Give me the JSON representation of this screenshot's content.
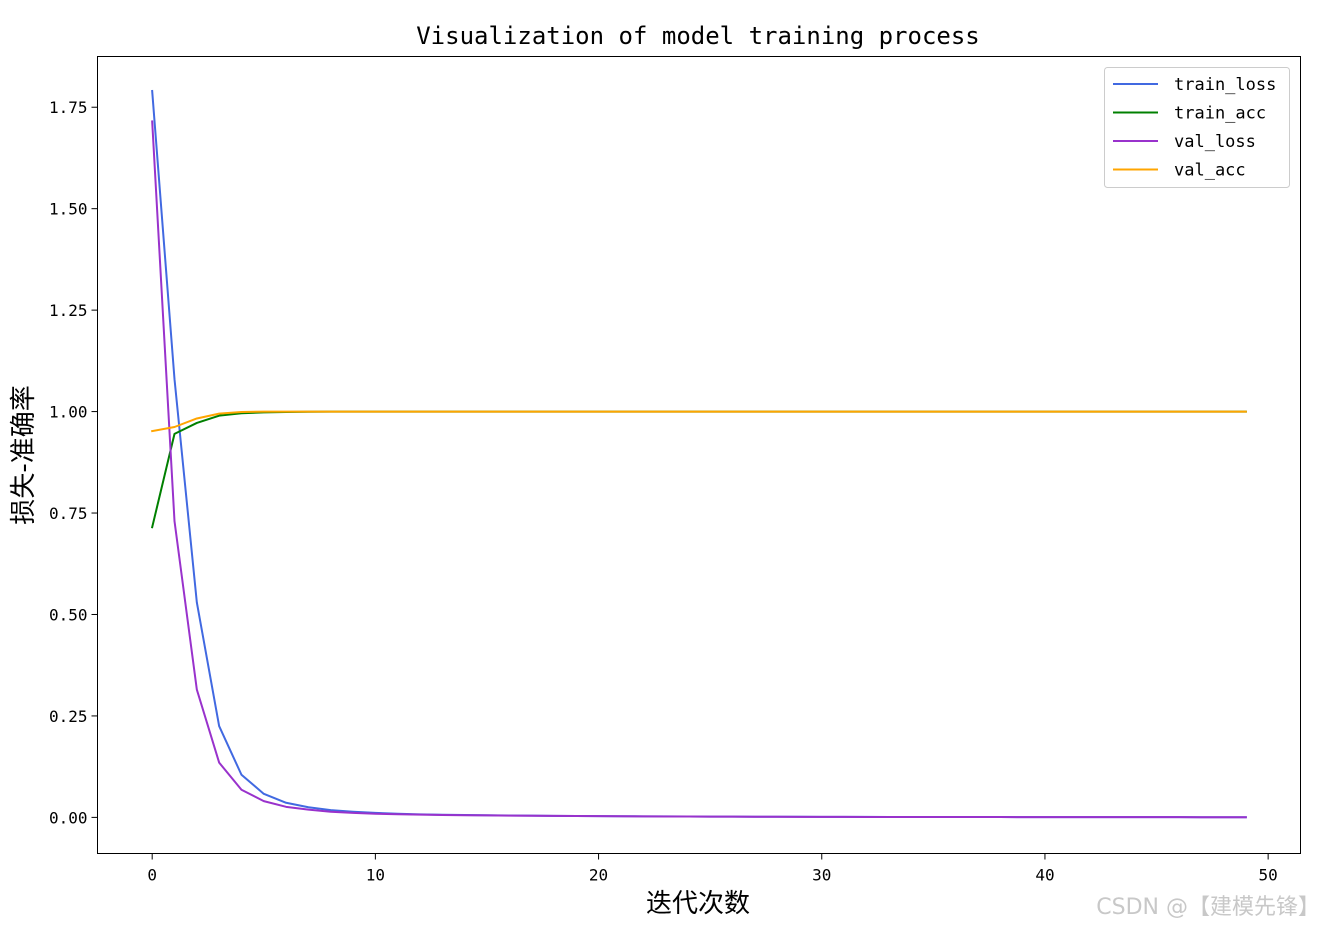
{
  "chart_data": {
    "type": "line",
    "title": "Visualization of model training process",
    "xlabel": "迭代次数",
    "ylabel": "损失-准确率",
    "xlim": [
      -2.45,
      51.45
    ],
    "ylim": [
      -0.089,
      1.875
    ],
    "xticks": [
      0,
      10,
      20,
      30,
      40,
      50
    ],
    "yticks": [
      0.0,
      0.25,
      0.5,
      0.75,
      1.0,
      1.25,
      1.5,
      1.75
    ],
    "xtick_labels": [
      "0",
      "10",
      "20",
      "30",
      "40",
      "50"
    ],
    "ytick_labels": [
      "0.00",
      "0.25",
      "0.50",
      "0.75",
      "1.00",
      "1.25",
      "1.50",
      "1.75"
    ],
    "legend_position": "top-right",
    "grid": false,
    "series": [
      {
        "name": "train_loss",
        "color": "#4169e1",
        "x": [
          0,
          1,
          2,
          3,
          4,
          5,
          6,
          7,
          8,
          9,
          10,
          11,
          12,
          13,
          14,
          15,
          16,
          17,
          18,
          19,
          20,
          21,
          22,
          23,
          24,
          25,
          26,
          27,
          28,
          29,
          30,
          31,
          32,
          33,
          34,
          35,
          36,
          37,
          38,
          39,
          40,
          41,
          42,
          43,
          44,
          45,
          46,
          47,
          48,
          49
        ],
        "y": [
          1.79,
          1.08,
          0.53,
          0.225,
          0.105,
          0.058,
          0.036,
          0.025,
          0.018,
          0.014,
          0.011,
          0.009,
          0.0075,
          0.0065,
          0.0058,
          0.0052,
          0.0047,
          0.0042,
          0.0038,
          0.0034,
          0.0031,
          0.0028,
          0.0026,
          0.0024,
          0.0022,
          0.002,
          0.0018,
          0.0017,
          0.0016,
          0.0015,
          0.0014,
          0.0013,
          0.0012,
          0.0011,
          0.001,
          0.0009,
          0.0009,
          0.0008,
          0.0008,
          0.0007,
          0.0007,
          0.0006,
          0.0006,
          0.0006,
          0.0005,
          0.0005,
          0.0005,
          0.0004,
          0.0004,
          0.0004
        ]
      },
      {
        "name": "train_acc",
        "color": "#008000",
        "x": [
          0,
          1,
          2,
          3,
          4,
          5,
          6,
          7,
          8,
          9,
          10,
          11,
          12,
          13,
          14,
          15,
          16,
          17,
          18,
          19,
          20,
          21,
          22,
          23,
          24,
          25,
          26,
          27,
          28,
          29,
          30,
          31,
          32,
          33,
          34,
          35,
          36,
          37,
          38,
          39,
          40,
          41,
          42,
          43,
          44,
          45,
          46,
          47,
          48,
          49
        ],
        "y": [
          0.715,
          0.945,
          0.972,
          0.99,
          0.996,
          0.998,
          0.999,
          0.9995,
          1.0,
          1.0,
          1.0,
          1.0,
          1.0,
          1.0,
          1.0,
          1.0,
          1.0,
          1.0,
          1.0,
          1.0,
          1.0,
          1.0,
          1.0,
          1.0,
          1.0,
          1.0,
          1.0,
          1.0,
          1.0,
          1.0,
          1.0,
          1.0,
          1.0,
          1.0,
          1.0,
          1.0,
          1.0,
          1.0,
          1.0,
          1.0,
          1.0,
          1.0,
          1.0,
          1.0,
          1.0,
          1.0,
          1.0,
          1.0,
          1.0,
          1.0
        ]
      },
      {
        "name": "val_loss",
        "color": "#9932cc",
        "x": [
          0,
          1,
          2,
          3,
          4,
          5,
          6,
          7,
          8,
          9,
          10,
          11,
          12,
          13,
          14,
          15,
          16,
          17,
          18,
          19,
          20,
          21,
          22,
          23,
          24,
          25,
          26,
          27,
          28,
          29,
          30,
          31,
          32,
          33,
          34,
          35,
          36,
          37,
          38,
          39,
          40,
          41,
          42,
          43,
          44,
          45,
          46,
          47,
          48,
          49
        ],
        "y": [
          1.715,
          0.73,
          0.315,
          0.135,
          0.068,
          0.04,
          0.026,
          0.019,
          0.014,
          0.011,
          0.009,
          0.0078,
          0.0068,
          0.006,
          0.0054,
          0.0049,
          0.0044,
          0.004,
          0.0036,
          0.0033,
          0.003,
          0.0027,
          0.0025,
          0.0023,
          0.0021,
          0.0019,
          0.0018,
          0.0016,
          0.0015,
          0.0014,
          0.0013,
          0.0012,
          0.0011,
          0.001,
          0.001,
          0.0009,
          0.0009,
          0.0008,
          0.0008,
          0.0007,
          0.0007,
          0.0006,
          0.0006,
          0.0006,
          0.0005,
          0.0005,
          0.0005,
          0.0004,
          0.0004,
          0.0004
        ]
      },
      {
        "name": "val_acc",
        "color": "#ffa500",
        "x": [
          0,
          1,
          2,
          3,
          4,
          5,
          6,
          7,
          8,
          9,
          10,
          11,
          12,
          13,
          14,
          15,
          16,
          17,
          18,
          19,
          20,
          21,
          22,
          23,
          24,
          25,
          26,
          27,
          28,
          29,
          30,
          31,
          32,
          33,
          34,
          35,
          36,
          37,
          38,
          39,
          40,
          41,
          42,
          43,
          44,
          45,
          46,
          47,
          48,
          49
        ],
        "y": [
          0.952,
          0.962,
          0.983,
          0.995,
          0.999,
          1.0,
          1.0,
          1.0,
          1.0,
          1.0,
          1.0,
          1.0,
          1.0,
          1.0,
          1.0,
          1.0,
          1.0,
          1.0,
          1.0,
          1.0,
          1.0,
          1.0,
          1.0,
          1.0,
          1.0,
          1.0,
          1.0,
          1.0,
          1.0,
          1.0,
          1.0,
          1.0,
          1.0,
          1.0,
          1.0,
          1.0,
          1.0,
          1.0,
          1.0,
          1.0,
          1.0,
          1.0,
          1.0,
          1.0,
          1.0,
          1.0,
          1.0,
          1.0,
          1.0,
          1.0
        ]
      }
    ]
  },
  "watermark": "CSDN @【建模先锋】"
}
